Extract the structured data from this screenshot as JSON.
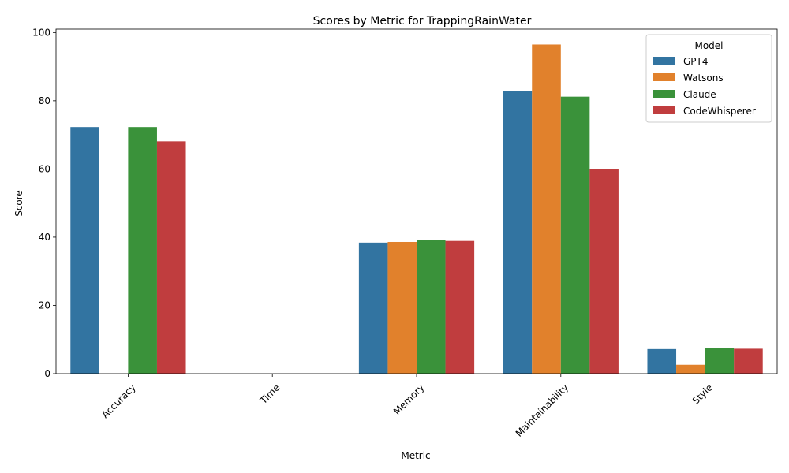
{
  "chart_data": {
    "type": "bar",
    "title": "Scores by Metric for TrappingRainWater",
    "xlabel": "Metric",
    "ylabel": "Score",
    "ylim": [
      0,
      101
    ],
    "yticks": [
      0,
      20,
      40,
      60,
      80,
      100
    ],
    "categories": [
      "Accuracy",
      "Time",
      "Memory",
      "Maintainability",
      "Style"
    ],
    "legend_title": "Model",
    "legend_position": "top-right",
    "grid": false,
    "series": [
      {
        "name": "GPT4",
        "color": "#3274a1",
        "values": [
          72.3,
          0,
          38.4,
          82.8,
          7.2
        ]
      },
      {
        "name": "Watsons",
        "color": "#e1812c",
        "values": [
          0,
          0,
          38.6,
          96.5,
          2.6
        ]
      },
      {
        "name": "Claude",
        "color": "#3a923a",
        "values": [
          72.3,
          0,
          39.1,
          81.2,
          7.5
        ]
      },
      {
        "name": "CodeWhisperer",
        "color": "#c03d3e",
        "values": [
          68.1,
          0,
          38.9,
          60.0,
          7.3
        ]
      }
    ]
  }
}
